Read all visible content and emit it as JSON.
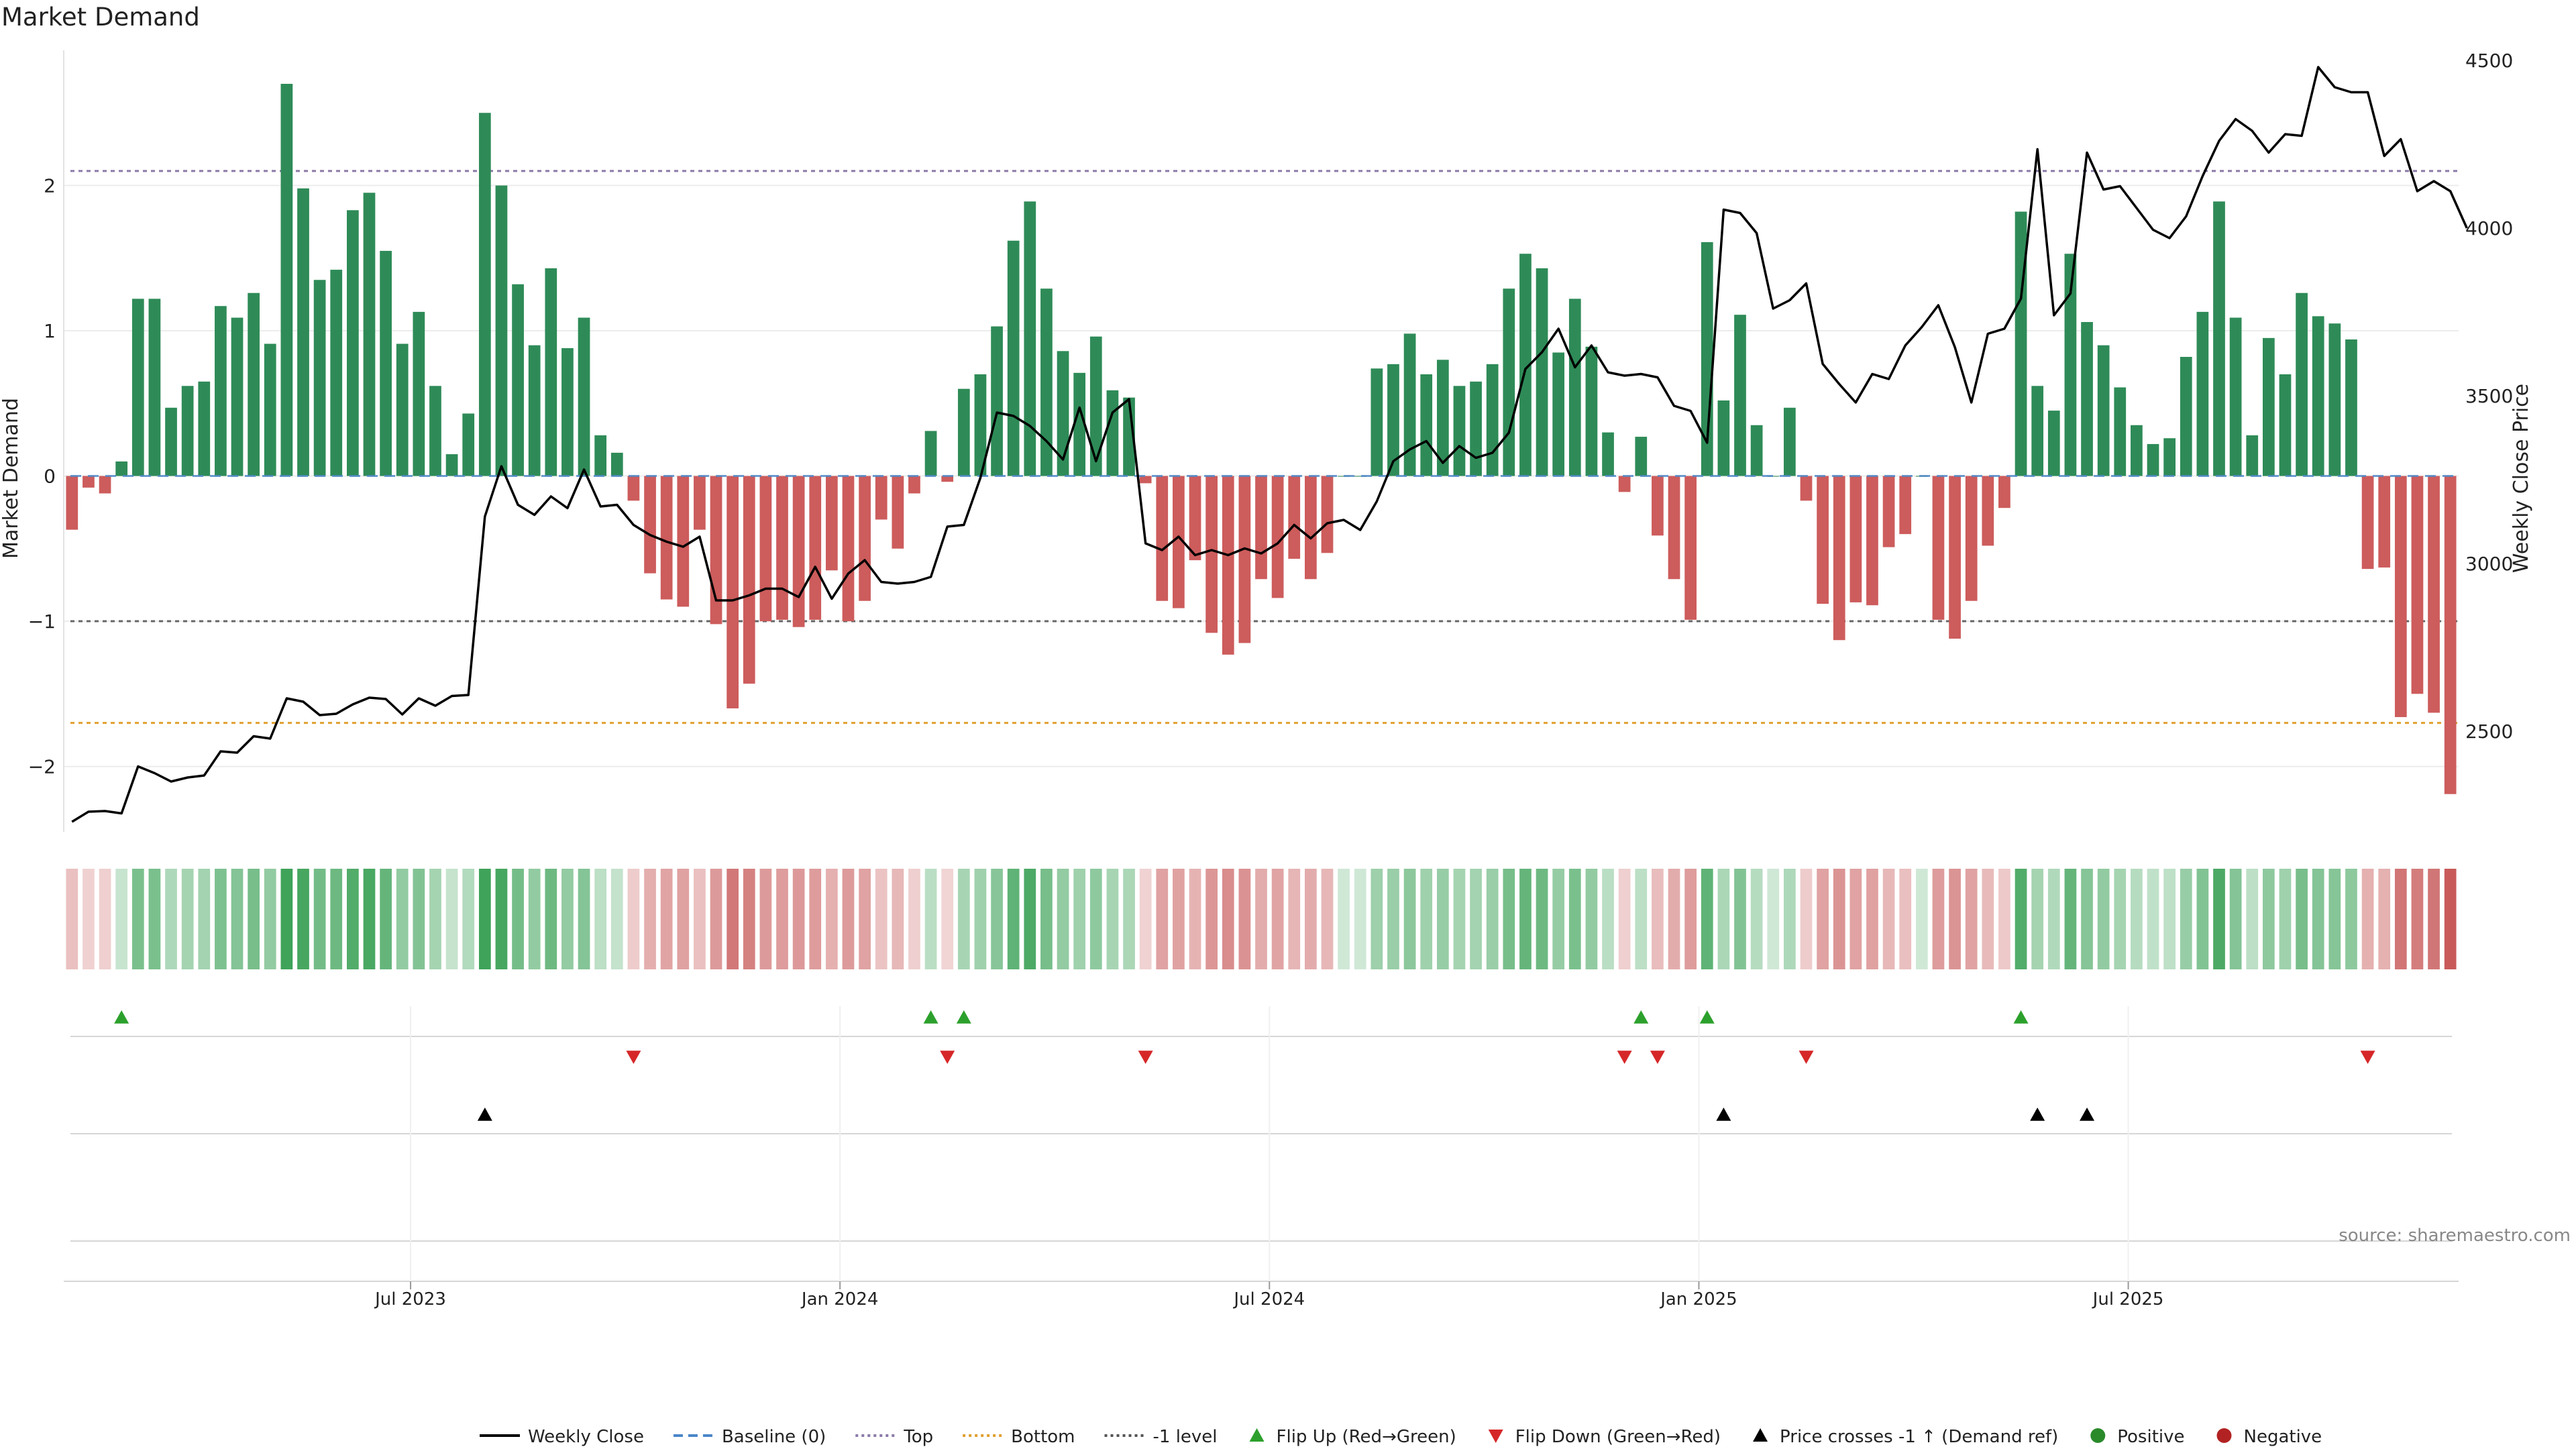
{
  "chart_data": {
    "type": "bar",
    "title": "Market Demand",
    "ylabel": "Market Demand",
    "y2label": "Weekly Close Price",
    "ylim": [
      -2.45,
      3.0
    ],
    "y2lim": [
      2200,
      4560
    ],
    "y_ticks": [
      -2,
      -1,
      0,
      1,
      2
    ],
    "y2_ticks": [
      2500,
      3000,
      3500,
      4000,
      4500
    ],
    "x_ticks": [
      "Jul 2023",
      "Jan 2024",
      "Jul 2024",
      "Jan 2025",
      "Jul 2025"
    ],
    "x_tick_weeks": [
      21,
      47,
      73,
      99,
      125
    ],
    "reference_lines": {
      "top": 2.1,
      "bottom": -1.7,
      "minus_one": -1.0,
      "baseline": 0
    },
    "demand": [
      -0.37,
      -0.08,
      -0.12,
      0.1,
      1.22,
      1.22,
      0.47,
      0.62,
      0.65,
      1.17,
      1.09,
      1.26,
      0.91,
      2.7,
      1.98,
      1.35,
      1.42,
      1.83,
      1.95,
      1.55,
      0.91,
      1.13,
      0.62,
      0.15,
      0.43,
      2.5,
      2.0,
      1.32,
      0.9,
      1.43,
      0.88,
      1.09,
      0.28,
      0.16,
      -0.17,
      -0.67,
      -0.85,
      -0.9,
      -0.37,
      -1.02,
      -1.6,
      -1.43,
      -1.0,
      -0.99,
      -1.04,
      -0.99,
      -0.65,
      -1.0,
      -0.86,
      -0.3,
      -0.5,
      -0.12,
      0.31,
      -0.04,
      0.6,
      0.7,
      1.03,
      1.62,
      1.89,
      1.29,
      0.86,
      0.71,
      0.96,
      0.59,
      0.54,
      -0.05,
      -0.86,
      -0.91,
      -0.58,
      -1.08,
      -1.23,
      -1.15,
      -0.71,
      -0.84,
      -0.57,
      -0.71,
      -0.53,
      0.0,
      0.0,
      0.74,
      0.77,
      0.98,
      0.7,
      0.8,
      0.62,
      0.65,
      0.77,
      1.29,
      1.53,
      1.43,
      0.85,
      1.22,
      0.89,
      0.3,
      -0.11,
      0.27,
      -0.41,
      -0.71,
      -0.99,
      1.61,
      0.52,
      1.11,
      0.35,
      0.0,
      0.47,
      -0.17,
      -0.88,
      -1.13,
      -0.87,
      -0.89,
      -0.49,
      -0.4,
      0.0,
      -0.99,
      -1.12,
      -0.86,
      -0.48,
      -0.22,
      1.82,
      0.62,
      0.45,
      1.53,
      1.06,
      0.9,
      0.61,
      0.35,
      0.22,
      0.26,
      0.82,
      1.13,
      1.89,
      1.09,
      0.28,
      0.95,
      0.7,
      1.26,
      1.1,
      1.05,
      0.94,
      -0.64,
      -0.63,
      -1.66,
      -1.5,
      -1.63,
      -2.19
    ],
    "weekly_close": [
      2230,
      2260,
      2262,
      2255,
      2395,
      2375,
      2350,
      2362,
      2368,
      2440,
      2436,
      2485,
      2478,
      2598,
      2588,
      2548,
      2552,
      2580,
      2600,
      2596,
      2550,
      2598,
      2576,
      2605,
      2608,
      3140,
      3290,
      3175,
      3145,
      3200,
      3165,
      3280,
      3170,
      3175,
      3115,
      3085,
      3065,
      3050,
      3080,
      2890,
      2890,
      2905,
      2925,
      2925,
      2900,
      2990,
      2895,
      2970,
      3010,
      2945,
      2940,
      2945,
      2960,
      3110,
      3115,
      3255,
      3450,
      3440,
      3410,
      3365,
      3310,
      3465,
      3305,
      3450,
      3490,
      3060,
      3040,
      3080,
      3025,
      3040,
      3025,
      3045,
      3030,
      3060,
      3115,
      3075,
      3120,
      3130,
      3100,
      3185,
      3305,
      3340,
      3365,
      3300,
      3350,
      3315,
      3330,
      3390,
      3580,
      3630,
      3700,
      3585,
      3650,
      3570,
      3560,
      3565,
      3555,
      3470,
      3455,
      3360,
      4055,
      4045,
      3985,
      3760,
      3785,
      3835,
      3595,
      3535,
      3480,
      3565,
      3550,
      3650,
      3705,
      3770,
      3645,
      3480,
      3685,
      3700,
      3790,
      4235,
      3740,
      3805,
      4225,
      4115,
      4125,
      4060,
      3995,
      3970,
      4035,
      4155,
      4260,
      4325,
      4290,
      4225,
      4280,
      4275,
      4480,
      4420,
      4405,
      4405,
      4215,
      4265,
      4110,
      4140,
      4110,
      4000
    ]
  },
  "legend": {
    "items": [
      {
        "label": "Weekly Close",
        "kind": "line",
        "color": "#000000"
      },
      {
        "label": "Baseline (0)",
        "kind": "dashed",
        "color": "#4a86c8"
      },
      {
        "label": "Top",
        "kind": "dotted",
        "color": "#8b7aa8"
      },
      {
        "label": "Bottom",
        "kind": "dotted",
        "color": "#e0a030"
      },
      {
        "label": "-1 level",
        "kind": "dotted",
        "color": "#555555"
      },
      {
        "label": "Flip Up (Red→Green)",
        "kind": "tri-up",
        "color": "#2ca02c"
      },
      {
        "label": "Flip Down (Green→Red)",
        "kind": "tri-down",
        "color": "#d62728"
      },
      {
        "label": "Price crosses -1 ↑ (Demand ref)",
        "kind": "tri-up",
        "color": "#000000"
      },
      {
        "label": "Positive",
        "kind": "dot",
        "color": "#2a8a2a"
      },
      {
        "label": "Negative",
        "kind": "dot",
        "color": "#b22222"
      }
    ]
  },
  "source_note": "source: sharemaestro.com",
  "colors": {
    "positive": "#2e8b57",
    "negative": "#cd5c5c",
    "flip_up": "#2ca02c",
    "flip_down": "#d62728"
  }
}
